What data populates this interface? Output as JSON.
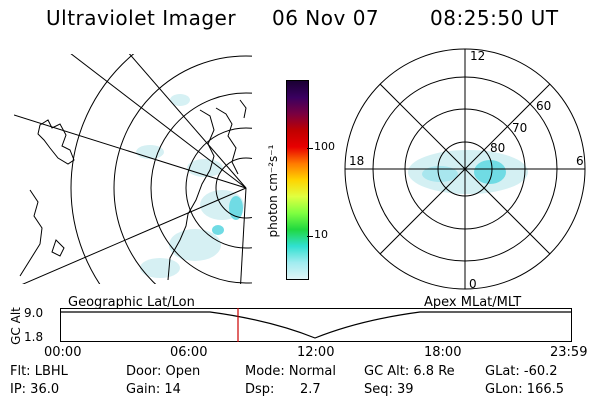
{
  "header": {
    "title": "Ultraviolet Imager",
    "date": "06 Nov 07",
    "time": "08:25:50 UT"
  },
  "colorbar": {
    "unit_label": "photon cm⁻²s⁻¹",
    "tick_100": "100",
    "tick_10": "10",
    "colors": [
      "#1a0033",
      "#3a0060",
      "#7a0040",
      "#c00000",
      "#e80000",
      "#ff7a00",
      "#ffd400",
      "#e0ff40",
      "#80ff40",
      "#20d840",
      "#30e0d0",
      "#a0ecf0",
      "#e0f4f6"
    ]
  },
  "polar": {
    "mlt_12": "12",
    "mlt_18": "18",
    "mlt_6": "6",
    "mlt_0": "0",
    "lat_60": "60",
    "lat_70": "70",
    "lat_80": "80"
  },
  "timeline": {
    "axis_label": "GC Alt",
    "left_title": "Geographic Lat/Lon",
    "right_title": "Apex MLat/MLT",
    "ymax": "9.0",
    "ymin": "1.8",
    "ticks": [
      "00:00",
      "06:00",
      "12:00",
      "18:00",
      "23:59"
    ],
    "marker_color": "#cc0000"
  },
  "status": {
    "flt": "Flt: LBHL",
    "ip": "IP: 36.0",
    "door": "Door: Open",
    "gain": "Gain: 14",
    "mode": "Mode: Normal",
    "dsp_label": "Dsp:",
    "dsp_value": "2.7",
    "gcalt": "GC Alt: 6.8 Re",
    "seq": "Seq: 39",
    "glat": "GLat: -60.2",
    "glon": "GLon: 166.5"
  }
}
